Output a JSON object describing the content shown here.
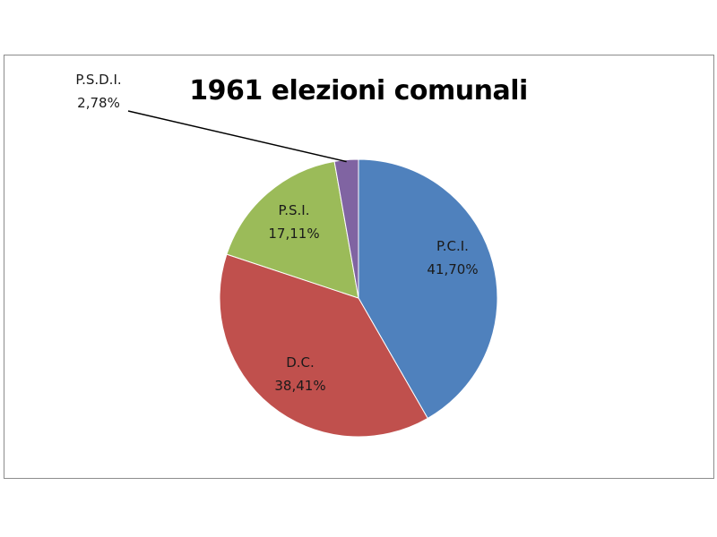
{
  "chart_data": {
    "type": "pie",
    "title": "1961 elezioni comunali",
    "slices": [
      {
        "label": "P.C.I.",
        "value": 41.7,
        "display": "41,70%",
        "color": "#4f81bd"
      },
      {
        "label": "D.C.",
        "value": 38.41,
        "display": "38,41%",
        "color": "#c0504d"
      },
      {
        "label": "P.S.I.",
        "value": 17.11,
        "display": "17,11%",
        "color": "#9bbb59"
      },
      {
        "label": "P.S.D.I.",
        "value": 2.78,
        "display": "2,78%",
        "color": "#8064a2"
      }
    ],
    "start": "12 o'clock",
    "direction": "clockwise",
    "legend": "none"
  }
}
